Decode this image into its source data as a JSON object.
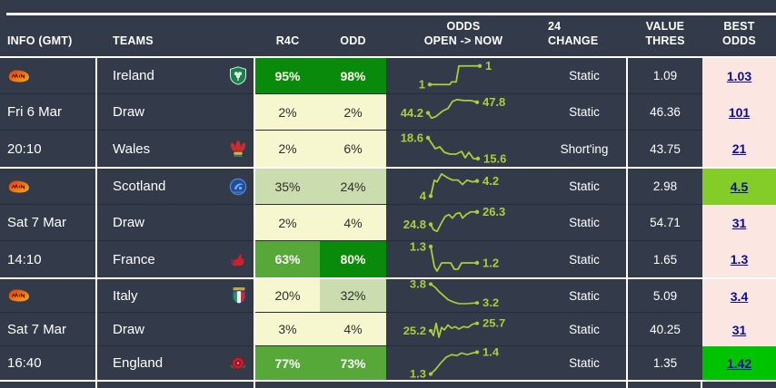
{
  "table": {
    "header": {
      "info": "INFO (GMT)",
      "teams": "TEAMS",
      "r4c": "R4C",
      "odd": "ODD",
      "odds_line1": "ODDS",
      "odds_line2": "OPEN -> NOW",
      "change_line1": "24",
      "change_line2": "CHANGE",
      "value_line1": "VALUE",
      "value_line2": "THRES",
      "best_line1": "BEST",
      "best_line2": "ODDS"
    }
  },
  "colors": {
    "background": "#333b4a",
    "pale_yellow": "#f6f6cf",
    "pale_green": "#cbdcae",
    "mid_green": "#56a839",
    "dark_green": "#0a8a0a",
    "spark_green": "#a9cf3a",
    "best_pink": "#fce6e2",
    "best_lime": "#84cc27",
    "best_green": "#00c300",
    "link_navy": "#0a0aa0"
  },
  "matches": [
    {
      "date": "Fri 6 Mar",
      "time": "20:10",
      "rows": [
        {
          "team": "Ireland",
          "badge": "ireland",
          "r4c": {
            "text": "95%",
            "style": "dg"
          },
          "odd": {
            "text": "98%",
            "style": "dg"
          },
          "spark": {
            "start": "1",
            "end": "1",
            "points": [
              [
                48,
                30
              ],
              [
                70,
                30
              ],
              [
                72,
                27
              ],
              [
                77,
                27
              ],
              [
                80,
                9
              ],
              [
                103,
                9
              ]
            ]
          },
          "change": "Static",
          "value": "1.09",
          "best": {
            "text": "1.03",
            "style": "pink"
          }
        },
        {
          "team": "Draw",
          "badge": null,
          "r4c": {
            "text": "2%",
            "style": "py"
          },
          "odd": {
            "text": "2%",
            "style": "py"
          },
          "spark": {
            "start": "44.2",
            "end": "47.8",
            "points": [
              [
                46,
                21
              ],
              [
                50,
                27
              ],
              [
                55,
                25
              ],
              [
                62,
                19
              ],
              [
                68,
                16
              ],
              [
                73,
                8
              ],
              [
                78,
                6
              ],
              [
                85,
                7
              ],
              [
                93,
                7
              ],
              [
                100,
                9
              ]
            ]
          },
          "change": "Static",
          "value": "46.36",
          "best": {
            "text": "101",
            "style": "pink"
          }
        },
        {
          "team": "Wales",
          "badge": "wales",
          "r4c": {
            "text": "2%",
            "style": "py"
          },
          "odd": {
            "text": "6%",
            "style": "py"
          },
          "spark": {
            "start": "18.6",
            "end": "15.6",
            "points": [
              [
                46,
                8
              ],
              [
                50,
                14
              ],
              [
                54,
                20
              ],
              [
                59,
                18
              ],
              [
                64,
                24
              ],
              [
                70,
                26
              ],
              [
                77,
                26
              ],
              [
                83,
                23
              ],
              [
                87,
                30
              ],
              [
                91,
                24
              ],
              [
                96,
                31
              ],
              [
                101,
                31
              ]
            ]
          },
          "change": "Short'ing",
          "value": "43.75",
          "best": {
            "text": "21",
            "style": "pink"
          }
        }
      ]
    },
    {
      "date": "Sat 7 Mar",
      "time": "14:10",
      "rows": [
        {
          "team": "Scotland",
          "badge": "scotland",
          "r4c": {
            "text": "35%",
            "style": "pg"
          },
          "odd": {
            "text": "24%",
            "style": "pg"
          },
          "spark": {
            "start": "4",
            "end": "4.2",
            "points": [
              [
                49,
                31
              ],
              [
                53,
                13
              ],
              [
                56,
                15
              ],
              [
                61,
                6
              ],
              [
                67,
                10
              ],
              [
                73,
                13
              ],
              [
                79,
                13
              ],
              [
                84,
                18
              ],
              [
                89,
                13
              ],
              [
                95,
                15
              ],
              [
                100,
                14
              ]
            ]
          },
          "change": "Static",
          "value": "2.98",
          "best": {
            "text": "4.5",
            "style": "lime"
          }
        },
        {
          "team": "Draw",
          "badge": null,
          "r4c": {
            "text": "2%",
            "style": "py"
          },
          "odd": {
            "text": "4%",
            "style": "py"
          },
          "spark": {
            "start": "24.8",
            "end": "26.3",
            "points": [
              [
                49,
                22
              ],
              [
                52,
                28
              ],
              [
                56,
                30
              ],
              [
                61,
                20
              ],
              [
                65,
                13
              ],
              [
                69,
                11
              ],
              [
                73,
                15
              ],
              [
                77,
                10
              ],
              [
                81,
                9
              ],
              [
                84,
                15
              ],
              [
                88,
                11
              ],
              [
                93,
                8
              ],
              [
                100,
                8
              ]
            ]
          },
          "change": "Static",
          "value": "54.71",
          "best": {
            "text": "31",
            "style": "pink"
          }
        },
        {
          "team": "France",
          "badge": "france",
          "r4c": {
            "text": "63%",
            "style": "mg"
          },
          "odd": {
            "text": "80%",
            "style": "dg"
          },
          "spark": {
            "start": "1.3",
            "end": "1.2",
            "points": [
              [
                49,
                6
              ],
              [
                53,
                28
              ],
              [
                56,
                33
              ],
              [
                61,
                24
              ],
              [
                66,
                24
              ],
              [
                71,
                24
              ],
              [
                75,
                31
              ],
              [
                79,
                31
              ],
              [
                83,
                24
              ],
              [
                88,
                24
              ],
              [
                100,
                24
              ]
            ]
          },
          "change": "Static",
          "value": "1.65",
          "best": {
            "text": "1.3",
            "style": "pink"
          }
        }
      ]
    },
    {
      "date": "Sat 7 Mar",
      "time": "16:40",
      "rows": [
        {
          "team": "Italy",
          "badge": "italy",
          "r4c": {
            "text": "20%",
            "style": "py"
          },
          "odd": {
            "text": "32%",
            "style": "pg"
          },
          "spark": {
            "start": "3.8",
            "end": "3.2",
            "points": [
              [
                49,
                6
              ],
              [
                54,
                10
              ],
              [
                58,
                15
              ],
              [
                63,
                20
              ],
              [
                68,
                25
              ],
              [
                74,
                28
              ],
              [
                80,
                30
              ],
              [
                88,
                30
              ],
              [
                100,
                29
              ]
            ]
          },
          "change": "Static",
          "value": "5.09",
          "best": {
            "text": "3.4",
            "style": "pink"
          }
        },
        {
          "team": "Draw",
          "badge": null,
          "r4c": {
            "text": "3%",
            "style": "py"
          },
          "odd": {
            "text": "4%",
            "style": "py"
          },
          "spark": {
            "start": "25.2",
            "end": "25.7",
            "points": [
              [
                49,
                22
              ],
              [
                52,
                28
              ],
              [
                55,
                13
              ],
              [
                58,
                30
              ],
              [
                61,
                18
              ],
              [
                64,
                21
              ],
              [
                68,
                15
              ],
              [
                72,
                19
              ],
              [
                76,
                17
              ],
              [
                80,
                20
              ],
              [
                85,
                17
              ],
              [
                90,
                18
              ],
              [
                95,
                14
              ],
              [
                100,
                13
              ]
            ]
          },
          "change": "Static",
          "value": "40.25",
          "best": {
            "text": "31",
            "style": "pink"
          }
        },
        {
          "team": "England",
          "badge": "england",
          "r4c": {
            "text": "77%",
            "style": "mg"
          },
          "odd": {
            "text": "73%",
            "style": "mg"
          },
          "spark": {
            "start": "1.3",
            "end": "1.4",
            "points": [
              [
                49,
                33
              ],
              [
                54,
                28
              ],
              [
                60,
                20
              ],
              [
                66,
                13
              ],
              [
                72,
                10
              ],
              [
                78,
                11
              ],
              [
                83,
                8
              ],
              [
                89,
                10
              ],
              [
                95,
                8
              ],
              [
                100,
                7
              ]
            ]
          },
          "change": "Static",
          "value": "1.35",
          "best": {
            "text": "1.42",
            "style": "green"
          }
        }
      ]
    }
  ]
}
